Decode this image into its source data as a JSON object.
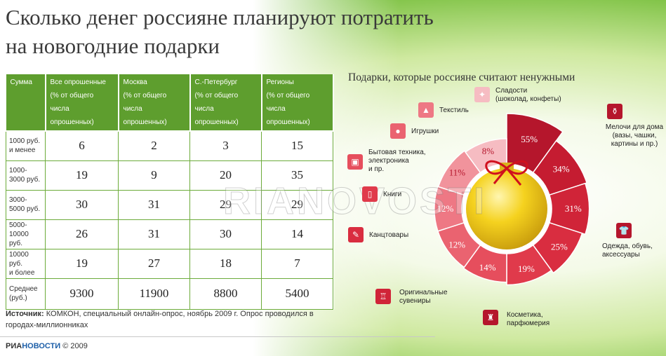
{
  "title": {
    "line1": "Сколько денег россияне планируют потратить",
    "line2": "на новогодние подарки"
  },
  "table": {
    "headers": [
      {
        "name": "Сумма",
        "sub1": "",
        "sub2": ""
      },
      {
        "name": "Все опрошенные",
        "sub1": "(% от общего",
        "sub2": "числа опрошенных)"
      },
      {
        "name": "Москва",
        "sub1": "(% от общего",
        "sub2": "числа опрошенных)"
      },
      {
        "name": "С.-Петербург",
        "sub1": "(% от общего",
        "sub2": "числа опрошенных)"
      },
      {
        "name": "Регионы",
        "sub1": "(% от общего",
        "sub2": "числа опрошенных)"
      }
    ],
    "rows": [
      {
        "label1": "1000 руб.",
        "label2": "и менее",
        "values": [
          "6",
          "2",
          "3",
          "15"
        ]
      },
      {
        "label1": "1000-",
        "label2": "3000 руб.",
        "values": [
          "19",
          "9",
          "20",
          "35"
        ]
      },
      {
        "label1": "3000-",
        "label2": "5000 руб.",
        "values": [
          "30",
          "31",
          "29",
          "29"
        ]
      },
      {
        "label1": "5000-",
        "label2": "10000 руб.",
        "values": [
          "26",
          "31",
          "30",
          "14"
        ]
      },
      {
        "label1": "10000 руб.",
        "label2": "и более",
        "values": [
          "19",
          "27",
          "18",
          "7"
        ]
      },
      {
        "label1": "Среднее",
        "label2": "(руб.)",
        "values": [
          "9300",
          "11900",
          "8800",
          "5400"
        ]
      }
    ]
  },
  "source": {
    "label": "Источник:",
    "text": " КОМКОН, специальный онлайн-опрос, ноябрь 2009 г. Опрос проводился в городах-миллионниках"
  },
  "brand": {
    "ria": "РИА",
    "novosti": "НОВОСТИ",
    "copyright": " © 2009"
  },
  "watermark": "RIANOVOSTI",
  "colors": {
    "table_header": "#5e9e2e",
    "ring_dark": "#b7122a",
    "ring_light": "#f5b8c0"
  },
  "chart_data": {
    "type": "pie",
    "title": "Подарки, которые россияне считают ненужными",
    "slices": [
      {
        "line1": "Мелочи для дома",
        "line2": "(вазы, чашки,",
        "line3": "картины и пр.)",
        "value": 55,
        "label": "55%",
        "color": "#b5162c",
        "icon": "vase-icon"
      },
      {
        "line1": "Одежда, обувь,",
        "line2": "аксессуары",
        "line3": "",
        "value": 34,
        "label": "34%",
        "color": "#c51c31",
        "icon": "shirt-icon"
      },
      {
        "line1": "Косметика,",
        "line2": "парфюмерия",
        "line3": "",
        "value": 31,
        "label": "31%",
        "color": "#d02438",
        "icon": "perfume-icon"
      },
      {
        "line1": "Оригинальные",
        "line2": "сувениры",
        "line3": "",
        "value": 25,
        "label": "25%",
        "color": "#d92d40",
        "icon": "gift-icon"
      },
      {
        "line1": "Канцтовары",
        "line2": "",
        "line3": "",
        "value": 19,
        "label": "19%",
        "color": "#e03a4b",
        "icon": "pen-icon"
      },
      {
        "line1": "Книги",
        "line2": "",
        "line3": "",
        "value": 14,
        "label": "14%",
        "color": "#e64e5d",
        "icon": "book-icon"
      },
      {
        "line1": "Бытовая техника,",
        "line2": "электроника",
        "line3": "и пр.",
        "value": 12,
        "label": "12%",
        "color": "#ea6370",
        "icon": "appliance-icon"
      },
      {
        "line1": "Игрушки",
        "line2": "",
        "line3": "",
        "value": 12,
        "label": "12%",
        "color": "#ee7884",
        "icon": "ball-icon"
      },
      {
        "line1": "Текстиль",
        "line2": "",
        "line3": "",
        "value": 11,
        "label": "11%",
        "color": "#f1939c",
        "icon": "textile-icon"
      },
      {
        "line1": "Сладости",
        "line2": "(шоколад, конфеты)",
        "line3": "",
        "value": 8,
        "label": "8%",
        "color": "#f6bcc2",
        "icon": "candy-icon"
      }
    ]
  }
}
